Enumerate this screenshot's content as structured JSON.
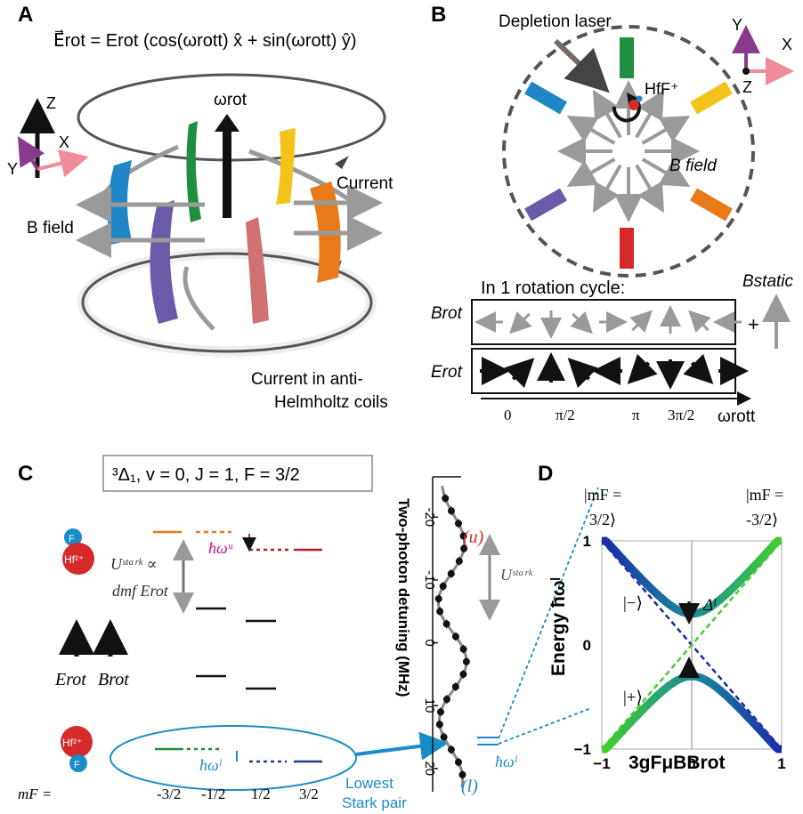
{
  "panel_a": {
    "label": "A",
    "equation": "E⃗rot = Erot (cos(ωrott) x̂ + sin(ωrott) ŷ)",
    "omega_label": "ωrot",
    "axis_z": "Z",
    "axis_x": "X",
    "axis_y": "Y",
    "current_label": "Current",
    "bfield_label": "B field",
    "coil_label_1": "Current in anti-",
    "coil_label_2": "Helmholtz coils"
  },
  "panel_b": {
    "label": "B",
    "laser_label": "Depletion laser",
    "ion_label": "HfF⁺",
    "bfield_label": "B field",
    "axis_y": "Y",
    "axis_x": "X",
    "axis_z": "Z",
    "cycle_title": "In 1 rotation cycle:",
    "brot_label": "Brot",
    "erot_label": "Erot",
    "bstatic_label": "Bstatic",
    "plus": "+",
    "ticks": [
      "0",
      "π/2",
      "π",
      "3π/2"
    ],
    "axis_label": "ωrott"
  },
  "panel_c": {
    "label": "C",
    "state_box": "³Δ₁, v = 0, J = 1, F = 3/2",
    "ion_upper_f": "F",
    "ion_upper_hf": "Hf²⁺",
    "ion_lower_hf": "Hf²⁺",
    "ion_lower_f": "F",
    "hw_u": "ħωᵘ",
    "hw_l": "ħωˡ",
    "ustark_1": "Uˢᵗᵃʳᵏ ∝",
    "ustark_2": "dmf Erot",
    "erot": "Erot",
    "brot": "Brot",
    "mf_prefix": "mF =",
    "mf_values": [
      "-3/2",
      "-1/2",
      "1/2",
      "3/2"
    ],
    "lowest_pair_1": "Lowest",
    "lowest_pair_2": "Stark pair",
    "spectrum_ylabel": "Two-photon detuning (MHz)",
    "spectrum_ticks": [
      "-20",
      "-10",
      "0",
      "10",
      "20"
    ],
    "u_label": "(u)",
    "l_label": "(l)",
    "ustark_spec": "Uˢᵗᵃʳᵏ",
    "hw_l_spec": "ħωˡ"
  },
  "panel_d": {
    "label": "D",
    "left_state_1": "|mF =",
    "left_state_2": "3/2⟩",
    "right_state_1": "|mF =",
    "right_state_2": "-3/2⟩",
    "ylabel": "Energy ħωˡ",
    "xlabel": "3gFμBBrot",
    "minus_state": "|−⟩",
    "plus_state": "|+⟩",
    "delta_label": "Δˡ",
    "x_ticks": [
      "−1",
      "0",
      "1"
    ],
    "y_ticks": [
      "1",
      "0",
      "−1"
    ]
  },
  "chart_data": [
    {
      "type": "scatter",
      "ylabel": "Two-photon detuning (MHz)",
      "ylim": [
        -25,
        23
      ],
      "ytick_labels": [
        "-20",
        "-10",
        "0",
        "10",
        "20"
      ],
      "points_detuning_mhz": [
        -23,
        -21,
        -19,
        -17,
        -15,
        -13,
        -11,
        -9,
        -7,
        -5,
        -3,
        -1,
        1,
        3,
        5,
        7,
        9,
        11,
        13,
        15,
        17,
        19,
        21
      ],
      "annotations": [
        "(u)",
        "(l)",
        "Uˢᵗᵃʳᵏ",
        "ħωˡ"
      ]
    },
    {
      "type": "line",
      "xlabel": "3gFμBBrot",
      "ylabel": "Energy ħωˡ",
      "xlim": [
        -1,
        1
      ],
      "ylim": [
        -1,
        1
      ],
      "series": [
        {
          "name": "|−⟩",
          "x": [
            -1,
            -0.5,
            0,
            0.5,
            1
          ],
          "y": [
            1,
            0.58,
            0.3,
            0.58,
            1
          ]
        },
        {
          "name": "|+⟩",
          "x": [
            -1,
            -0.5,
            0,
            0.5,
            1
          ],
          "y": [
            -1,
            -0.58,
            -0.3,
            -0.58,
            -1
          ]
        }
      ],
      "annotations": [
        "Δˡ"
      ]
    }
  ],
  "colors": {
    "blue_plate": "#1f86c8",
    "green_plate": "#1e8f3e",
    "yellow_plate": "#f2c41a",
    "orange_plate": "#e87a1a",
    "purple_plate": "#6a5aa8",
    "red_plate": "#d62a2a",
    "arrow_gray": "#9a9a9a",
    "magenta": "#c0168c",
    "cyan": "#1a8cc8",
    "upper_orange": "#e87a1a",
    "upper_red": "#b8202a",
    "lower_green": "#1e8f3e",
    "lower_blue": "#1f3f8c"
  }
}
